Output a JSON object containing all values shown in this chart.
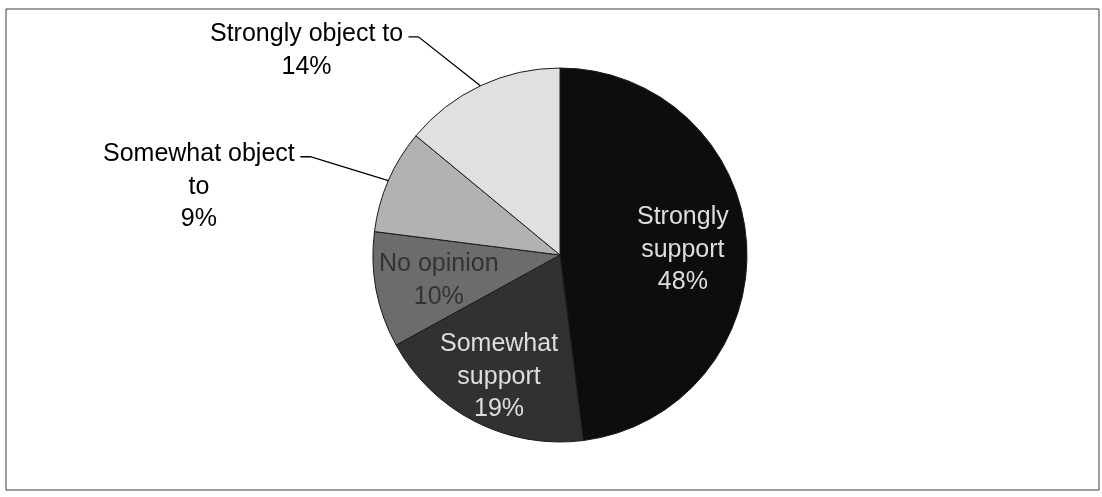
{
  "chart_data": {
    "type": "pie",
    "categories": [
      "Strongly support",
      "Somewhat support",
      "No opinion",
      "Somewhat object to",
      "Strongly object to"
    ],
    "values": [
      48,
      19,
      10,
      9,
      14
    ],
    "colors": [
      "#0d0d0d",
      "#313131",
      "#6c6c6c",
      "#b2b2b2",
      "#e0e0e0"
    ],
    "value_labels": [
      "48%",
      "19%",
      "10%",
      "9%",
      "14%"
    ]
  }
}
